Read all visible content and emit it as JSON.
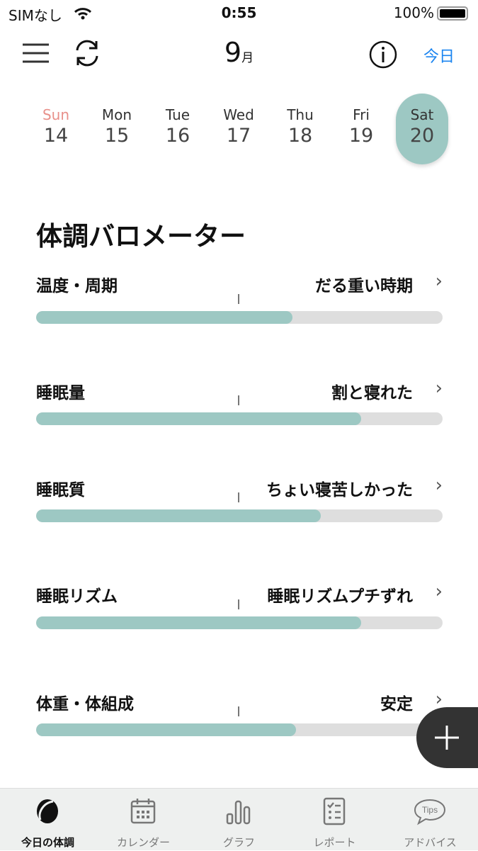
{
  "status": {
    "carrier": "SIMなし",
    "time": "0:55",
    "battery": "100%"
  },
  "header": {
    "month_num": "9",
    "month_suffix": "月",
    "today": "今日"
  },
  "days": [
    {
      "name": "Sun",
      "date": "14"
    },
    {
      "name": "Mon",
      "date": "15"
    },
    {
      "name": "Tue",
      "date": "16"
    },
    {
      "name": "Wed",
      "date": "17"
    },
    {
      "name": "Thu",
      "date": "18"
    },
    {
      "name": "Fri",
      "date": "19"
    },
    {
      "name": "Sat",
      "date": "20",
      "selected": true
    }
  ],
  "section_title": "体調バロメーター",
  "rows": [
    {
      "label": "温度・周期",
      "value": "だる重い時期",
      "level": 0.63
    },
    {
      "label": "睡眠量",
      "value": "割と寝れた",
      "level": 0.8
    },
    {
      "label": "睡眠質",
      "value": "ちょい寝苦しかった",
      "level": 0.7
    },
    {
      "label": "睡眠リズム",
      "value": "睡眠リズムプチずれ",
      "level": 0.8
    },
    {
      "label": "体重・体組成",
      "value": "安定",
      "level": 0.64
    }
  ],
  "tabs": [
    {
      "label": "今日の体調",
      "icon": "today-icon",
      "active": true
    },
    {
      "label": "カレンダー",
      "icon": "calendar-icon"
    },
    {
      "label": "グラフ",
      "icon": "graph-icon"
    },
    {
      "label": "レポート",
      "icon": "report-icon"
    },
    {
      "label": "アドバイス",
      "icon": "tips-icon",
      "icon_text": "Tips"
    }
  ],
  "colors": {
    "accent": "#9dc8c3",
    "link": "#1a84f0",
    "sunday": "#e8908a"
  }
}
